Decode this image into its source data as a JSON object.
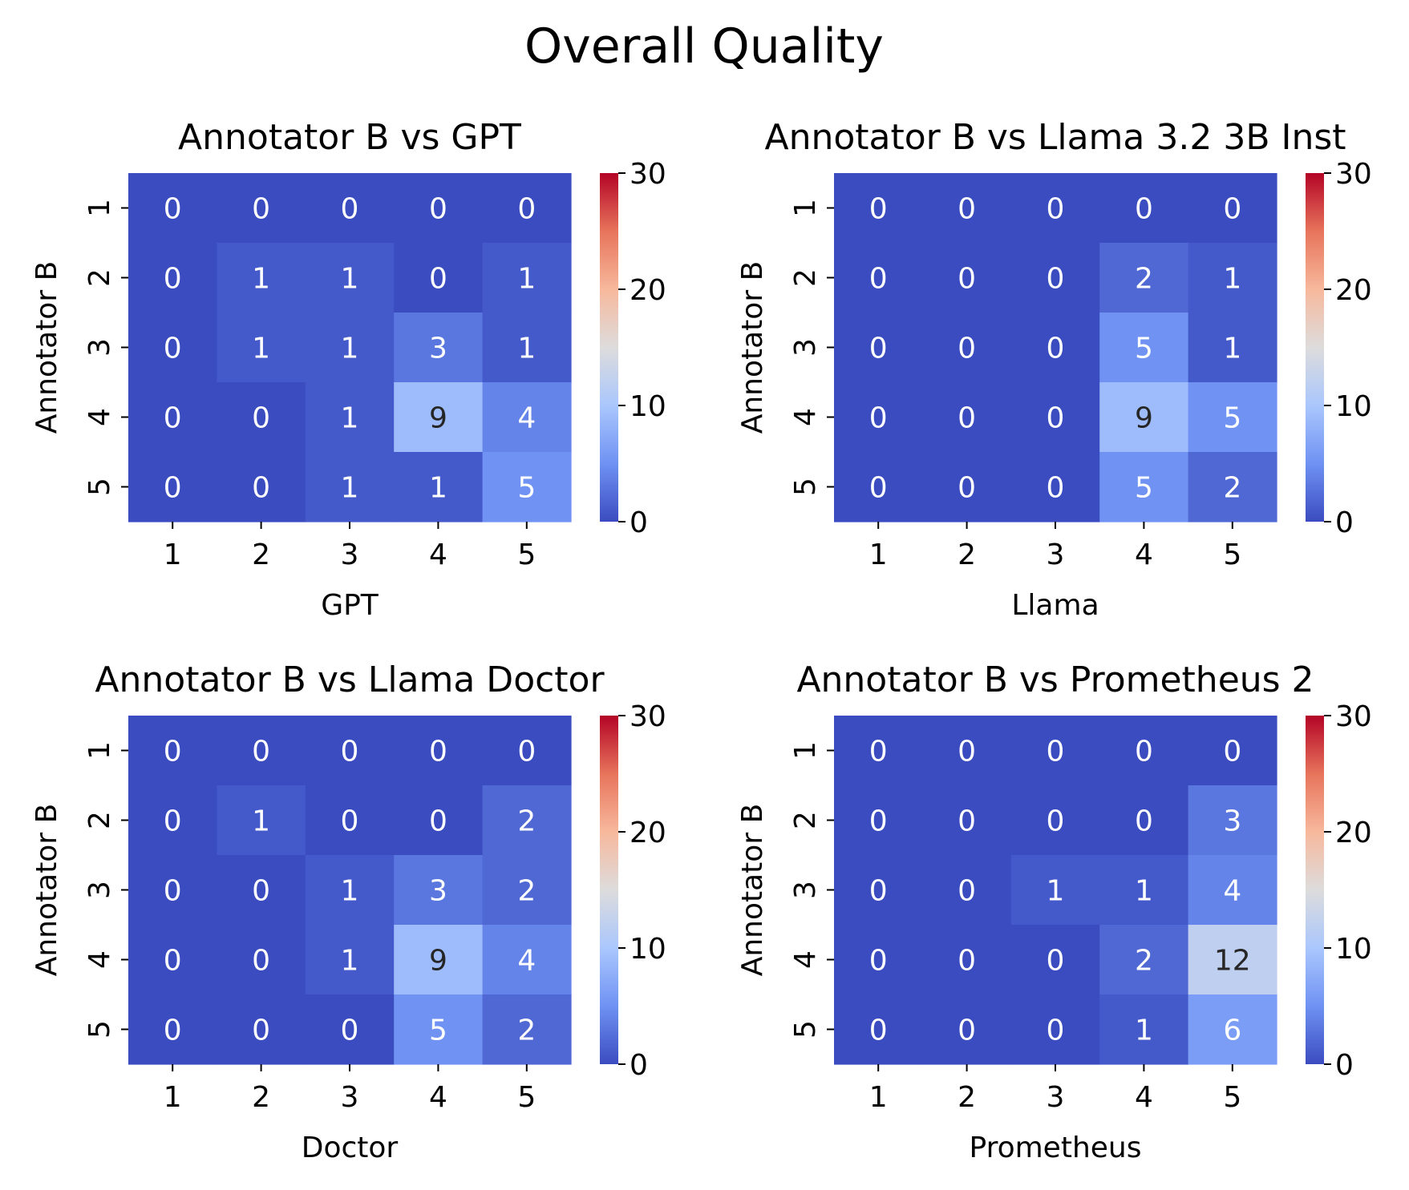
{
  "figure": {
    "title": "Overall Quality"
  },
  "colormap": {
    "name": "coolwarm",
    "stops": [
      "#3b4cc0",
      "#6f92f3",
      "#aac7fd",
      "#dddcdc",
      "#f7b89c",
      "#e7745b",
      "#b40426"
    ]
  },
  "chart_data": [
    {
      "type": "heatmap",
      "title": "Annotator B vs GPT",
      "xlabel": "GPT",
      "ylabel": "Annotator B",
      "x_ticks": [
        "1",
        "2",
        "3",
        "4",
        "5"
      ],
      "y_ticks": [
        "1",
        "2",
        "3",
        "4",
        "5"
      ],
      "values": [
        [
          0,
          0,
          0,
          0,
          0
        ],
        [
          0,
          1,
          1,
          0,
          1
        ],
        [
          0,
          1,
          1,
          3,
          1
        ],
        [
          0,
          0,
          1,
          9,
          4
        ],
        [
          0,
          0,
          1,
          1,
          5
        ]
      ],
      "vmin": 0,
      "vmax": 30,
      "colorbar_ticks": [
        "0",
        "10",
        "20",
        "30"
      ]
    },
    {
      "type": "heatmap",
      "title": "Annotator B vs Llama 3.2 3B Inst",
      "xlabel": "Llama",
      "ylabel": "Annotator B",
      "x_ticks": [
        "1",
        "2",
        "3",
        "4",
        "5"
      ],
      "y_ticks": [
        "1",
        "2",
        "3",
        "4",
        "5"
      ],
      "values": [
        [
          0,
          0,
          0,
          0,
          0
        ],
        [
          0,
          0,
          0,
          2,
          1
        ],
        [
          0,
          0,
          0,
          5,
          1
        ],
        [
          0,
          0,
          0,
          9,
          5
        ],
        [
          0,
          0,
          0,
          5,
          2
        ]
      ],
      "vmin": 0,
      "vmax": 30,
      "colorbar_ticks": [
        "0",
        "10",
        "20",
        "30"
      ]
    },
    {
      "type": "heatmap",
      "title": "Annotator B vs Llama Doctor",
      "xlabel": "Doctor",
      "ylabel": "Annotator B",
      "x_ticks": [
        "1",
        "2",
        "3",
        "4",
        "5"
      ],
      "y_ticks": [
        "1",
        "2",
        "3",
        "4",
        "5"
      ],
      "values": [
        [
          0,
          0,
          0,
          0,
          0
        ],
        [
          0,
          1,
          0,
          0,
          2
        ],
        [
          0,
          0,
          1,
          3,
          2
        ],
        [
          0,
          0,
          1,
          9,
          4
        ],
        [
          0,
          0,
          0,
          5,
          2
        ]
      ],
      "vmin": 0,
      "vmax": 30,
      "colorbar_ticks": [
        "0",
        "10",
        "20",
        "30"
      ]
    },
    {
      "type": "heatmap",
      "title": "Annotator B vs Prometheus 2",
      "xlabel": "Prometheus",
      "ylabel": "Annotator B",
      "x_ticks": [
        "1",
        "2",
        "3",
        "4",
        "5"
      ],
      "y_ticks": [
        "1",
        "2",
        "3",
        "4",
        "5"
      ],
      "values": [
        [
          0,
          0,
          0,
          0,
          0
        ],
        [
          0,
          0,
          0,
          0,
          3
        ],
        [
          0,
          0,
          1,
          1,
          4
        ],
        [
          0,
          0,
          0,
          2,
          12
        ],
        [
          0,
          0,
          0,
          1,
          6
        ]
      ],
      "vmin": 0,
      "vmax": 30,
      "colorbar_ticks": [
        "0",
        "10",
        "20",
        "30"
      ]
    }
  ]
}
